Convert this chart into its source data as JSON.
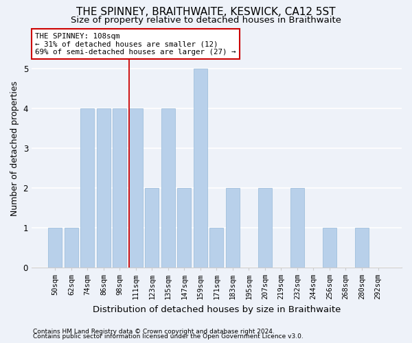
{
  "title": "THE SPINNEY, BRAITHWAITE, KESWICK, CA12 5ST",
  "subtitle": "Size of property relative to detached houses in Braithwaite",
  "xlabel": "Distribution of detached houses by size in Braithwaite",
  "ylabel": "Number of detached properties",
  "categories": [
    "50sqm",
    "62sqm",
    "74sqm",
    "86sqm",
    "98sqm",
    "111sqm",
    "123sqm",
    "135sqm",
    "147sqm",
    "159sqm",
    "171sqm",
    "183sqm",
    "195sqm",
    "207sqm",
    "219sqm",
    "232sqm",
    "244sqm",
    "256sqm",
    "268sqm",
    "280sqm",
    "292sqm"
  ],
  "values": [
    1,
    1,
    4,
    4,
    4,
    4,
    2,
    4,
    2,
    5,
    1,
    2,
    0,
    2,
    0,
    2,
    0,
    1,
    0,
    1,
    0
  ],
  "bar_color": "#b8d0ea",
  "bar_edge_color": "#95b8d8",
  "highlight_index": 5,
  "red_line_index": 5,
  "annotation_line1": "THE SPINNEY: 108sqm",
  "annotation_line2": "← 31% of detached houses are smaller (12)",
  "annotation_line3": "69% of semi-detached houses are larger (27) →",
  "annotation_box_color": "#ffffff",
  "annotation_box_edge": "#cc0000",
  "ylim": [
    0,
    6
  ],
  "yticks": [
    0,
    1,
    2,
    3,
    4,
    5,
    6
  ],
  "footer_line1": "Contains HM Land Registry data © Crown copyright and database right 2024.",
  "footer_line2": "Contains public sector information licensed under the Open Government Licence v3.0.",
  "bg_color": "#eef2f9",
  "plot_bg_color": "#eef2f9",
  "grid_color": "#ffffff",
  "title_fontsize": 11,
  "subtitle_fontsize": 9.5,
  "tick_fontsize": 7.5,
  "ylabel_fontsize": 9,
  "xlabel_fontsize": 9.5,
  "footer_fontsize": 6.5
}
